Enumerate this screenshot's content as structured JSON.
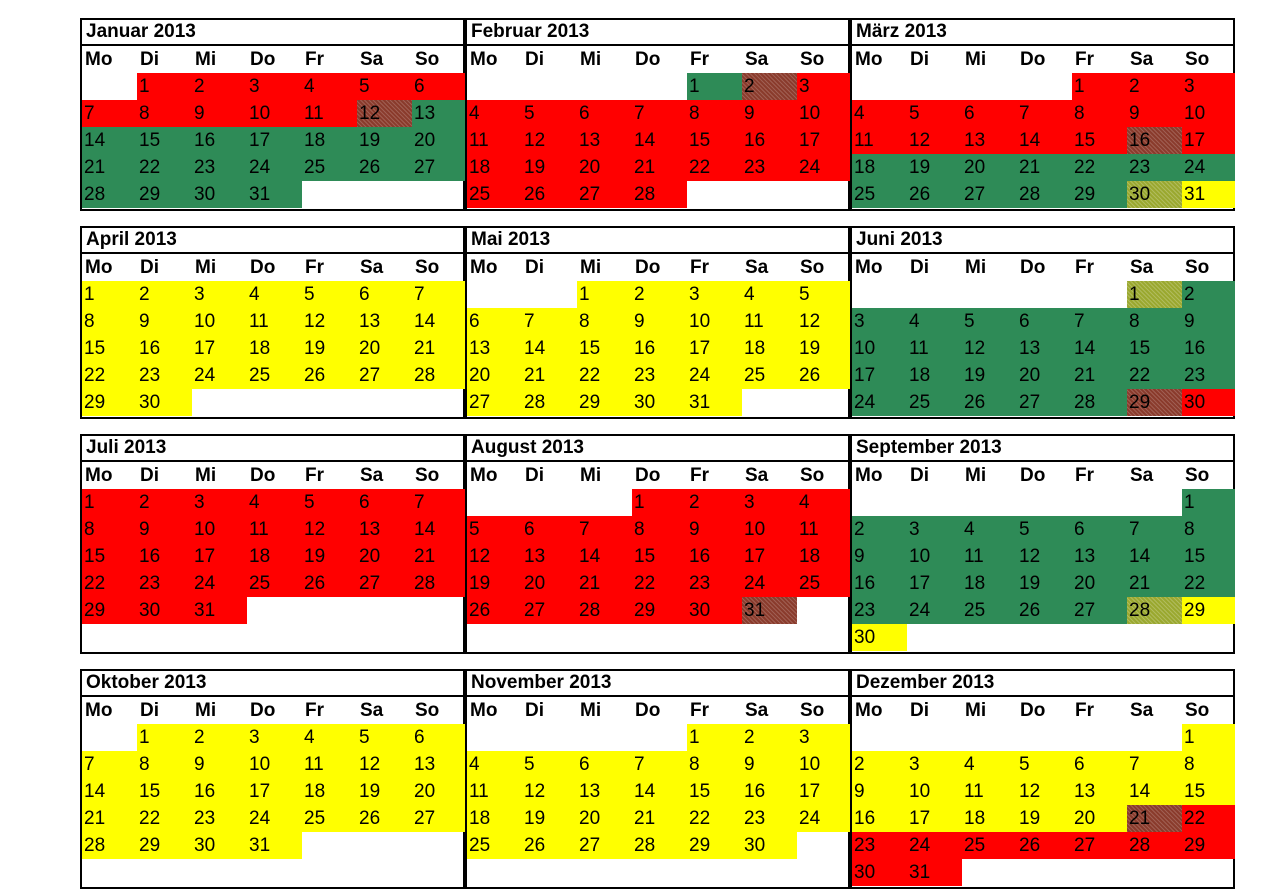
{
  "weekdays": [
    "Mo",
    "Di",
    "Mi",
    "Do",
    "Fr",
    "Sa",
    "So"
  ],
  "colors": {
    "red": "#ff0000",
    "green": "#2e8b57",
    "yellow": "#ffff00",
    "red_green_hatched": "#8a3b2c",
    "green_yellow_hatched": "#9aa82f"
  },
  "months": [
    {
      "title": "Januar 2013",
      "start": 1,
      "days": 31,
      "colors": [
        "red",
        "red",
        "red",
        "red",
        "red",
        "red",
        "red",
        "red",
        "red",
        "red",
        "red",
        "rg",
        "green",
        "green",
        "green",
        "green",
        "green",
        "green",
        "green",
        "green",
        "green",
        "green",
        "green",
        "green",
        "green",
        "green",
        "green",
        "green",
        "green",
        "green",
        "green"
      ]
    },
    {
      "title": "Februar 2013",
      "start": 4,
      "days": 28,
      "colors": [
        "green",
        "rg",
        "red",
        "red",
        "red",
        "red",
        "red",
        "red",
        "red",
        "red",
        "red",
        "red",
        "red",
        "red",
        "red",
        "red",
        "red",
        "red",
        "red",
        "red",
        "red",
        "red",
        "red",
        "red",
        "red",
        "red",
        "red",
        "red"
      ]
    },
    {
      "title": "März 2013",
      "start": 4,
      "days": 31,
      "colors": [
        "red",
        "red",
        "red",
        "red",
        "red",
        "red",
        "red",
        "red",
        "red",
        "red",
        "red",
        "red",
        "red",
        "red",
        "red",
        "rg",
        "red",
        "green",
        "green",
        "green",
        "green",
        "green",
        "green",
        "green",
        "green",
        "green",
        "green",
        "green",
        "green",
        "gy",
        "yellow"
      ]
    },
    {
      "title": "April 2013",
      "start": 0,
      "days": 30,
      "colors": [
        "yellow",
        "yellow",
        "yellow",
        "yellow",
        "yellow",
        "yellow",
        "yellow",
        "yellow",
        "yellow",
        "yellow",
        "yellow",
        "yellow",
        "yellow",
        "yellow",
        "yellow",
        "yellow",
        "yellow",
        "yellow",
        "yellow",
        "yellow",
        "yellow",
        "yellow",
        "yellow",
        "yellow",
        "yellow",
        "yellow",
        "yellow",
        "yellow",
        "yellow",
        "yellow"
      ]
    },
    {
      "title": "Mai 2013",
      "start": 2,
      "days": 31,
      "colors": [
        "yellow",
        "yellow",
        "yellow",
        "yellow",
        "yellow",
        "yellow",
        "yellow",
        "yellow",
        "yellow",
        "yellow",
        "yellow",
        "yellow",
        "yellow",
        "yellow",
        "yellow",
        "yellow",
        "yellow",
        "yellow",
        "yellow",
        "yellow",
        "yellow",
        "yellow",
        "yellow",
        "yellow",
        "yellow",
        "yellow",
        "yellow",
        "yellow",
        "yellow",
        "yellow",
        "yellow"
      ]
    },
    {
      "title": "Juni 2013",
      "start": 5,
      "days": 30,
      "colors": [
        "gy",
        "green",
        "green",
        "green",
        "green",
        "green",
        "green",
        "green",
        "green",
        "green",
        "green",
        "green",
        "green",
        "green",
        "green",
        "green",
        "green",
        "green",
        "green",
        "green",
        "green",
        "green",
        "green",
        "green",
        "green",
        "green",
        "green",
        "green",
        "rg",
        "red"
      ]
    },
    {
      "title": "Juli 2013",
      "start": 0,
      "days": 31,
      "colors": [
        "red",
        "red",
        "red",
        "red",
        "red",
        "red",
        "red",
        "red",
        "red",
        "red",
        "red",
        "red",
        "red",
        "red",
        "red",
        "red",
        "red",
        "red",
        "red",
        "red",
        "red",
        "red",
        "red",
        "red",
        "red",
        "red",
        "red",
        "red",
        "red",
        "red",
        "red"
      ]
    },
    {
      "title": "August 2013",
      "start": 3,
      "days": 31,
      "colors": [
        "red",
        "red",
        "red",
        "red",
        "red",
        "red",
        "red",
        "red",
        "red",
        "red",
        "red",
        "red",
        "red",
        "red",
        "red",
        "red",
        "red",
        "red",
        "red",
        "red",
        "red",
        "red",
        "red",
        "red",
        "red",
        "red",
        "red",
        "red",
        "red",
        "red",
        "rg"
      ]
    },
    {
      "title": "September 2013",
      "start": 6,
      "days": 30,
      "colors": [
        "green",
        "green",
        "green",
        "green",
        "green",
        "green",
        "green",
        "green",
        "green",
        "green",
        "green",
        "green",
        "green",
        "green",
        "green",
        "green",
        "green",
        "green",
        "green",
        "green",
        "green",
        "green",
        "green",
        "green",
        "green",
        "green",
        "green",
        "gy",
        "yellow",
        "yellow"
      ]
    },
    {
      "title": "Oktober 2013",
      "start": 1,
      "days": 31,
      "colors": [
        "yellow",
        "yellow",
        "yellow",
        "yellow",
        "yellow",
        "yellow",
        "yellow",
        "yellow",
        "yellow",
        "yellow",
        "yellow",
        "yellow",
        "yellow",
        "yellow",
        "yellow",
        "yellow",
        "yellow",
        "yellow",
        "yellow",
        "yellow",
        "yellow",
        "yellow",
        "yellow",
        "yellow",
        "yellow",
        "yellow",
        "yellow",
        "yellow",
        "yellow",
        "yellow",
        "yellow"
      ]
    },
    {
      "title": "November 2013",
      "start": 4,
      "days": 30,
      "colors": [
        "yellow",
        "yellow",
        "yellow",
        "yellow",
        "yellow",
        "yellow",
        "yellow",
        "yellow",
        "yellow",
        "yellow",
        "yellow",
        "yellow",
        "yellow",
        "yellow",
        "yellow",
        "yellow",
        "yellow",
        "yellow",
        "yellow",
        "yellow",
        "yellow",
        "yellow",
        "yellow",
        "yellow",
        "yellow",
        "yellow",
        "yellow",
        "yellow",
        "yellow",
        "yellow"
      ]
    },
    {
      "title": "Dezember 2013",
      "start": 6,
      "days": 31,
      "colors": [
        "yellow",
        "yellow",
        "yellow",
        "yellow",
        "yellow",
        "yellow",
        "yellow",
        "yellow",
        "yellow",
        "yellow",
        "yellow",
        "yellow",
        "yellow",
        "yellow",
        "yellow",
        "yellow",
        "yellow",
        "yellow",
        "yellow",
        "yellow",
        "rg",
        "red",
        "red",
        "red",
        "red",
        "red",
        "red",
        "red",
        "red",
        "red",
        "red"
      ]
    }
  ]
}
